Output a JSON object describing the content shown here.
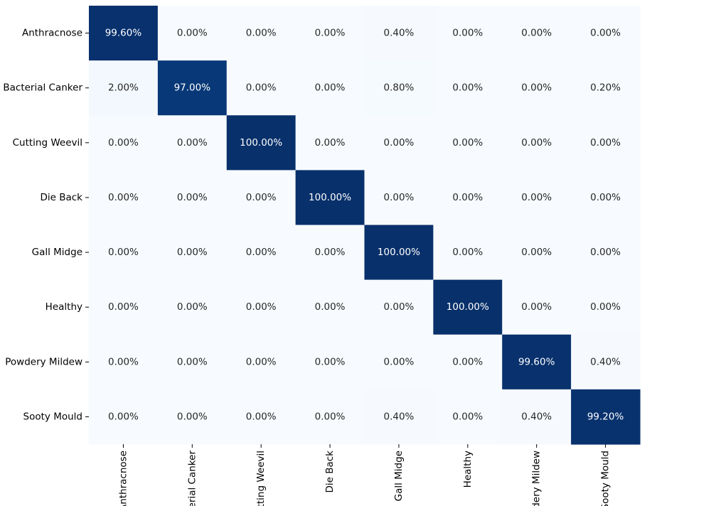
{
  "chart_data": {
    "type": "heatmap",
    "title": "",
    "xlabel": "",
    "ylabel": "",
    "value_suffix": "%",
    "value_range": [
      0,
      100
    ],
    "colormap": "Blues",
    "color_low": "#f7fbff",
    "color_high": "#08306b",
    "text_dark": "#262626",
    "text_light": "#ffffff",
    "x_categories": [
      "Anthracnose",
      "Bacterial Canker",
      "Cutting Weevil",
      "Die Back",
      "Gall Midge",
      "Healthy",
      "Powdery Mildew",
      "Sooty Mould"
    ],
    "y_categories": [
      "Anthracnose",
      "Bacterial Canker",
      "Cutting Weevil",
      "Die Back",
      "Gall Midge",
      "Healthy",
      "Powdery Mildew",
      "Sooty Mould"
    ],
    "values": [
      [
        99.6,
        0.0,
        0.0,
        0.0,
        0.4,
        0.0,
        0.0,
        0.0
      ],
      [
        2.0,
        97.0,
        0.0,
        0.0,
        0.8,
        0.0,
        0.0,
        0.2
      ],
      [
        0.0,
        0.0,
        100.0,
        0.0,
        0.0,
        0.0,
        0.0,
        0.0
      ],
      [
        0.0,
        0.0,
        0.0,
        100.0,
        0.0,
        0.0,
        0.0,
        0.0
      ],
      [
        0.0,
        0.0,
        0.0,
        0.0,
        100.0,
        0.0,
        0.0,
        0.0
      ],
      [
        0.0,
        0.0,
        0.0,
        0.0,
        0.0,
        100.0,
        0.0,
        0.0
      ],
      [
        0.0,
        0.0,
        0.0,
        0.0,
        0.0,
        0.0,
        99.6,
        0.4
      ],
      [
        0.0,
        0.0,
        0.0,
        0.0,
        0.4,
        0.0,
        0.4,
        99.2
      ]
    ],
    "grid": false,
    "legend": "none"
  }
}
